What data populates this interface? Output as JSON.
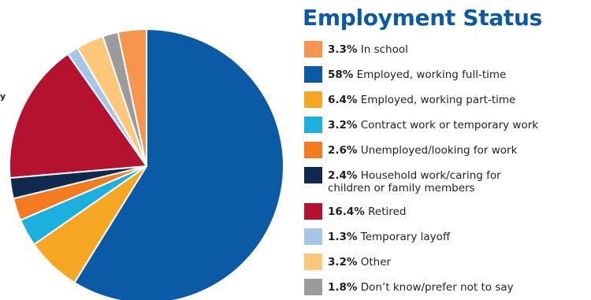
{
  "title": "Employment Status",
  "cut_label": "y",
  "chart_data": {
    "type": "pie",
    "title": "Employment Status",
    "start": "12 o'clock",
    "direction": "clockwise",
    "slices": [
      {
        "pct_label": "58%",
        "value": 58,
        "label": "Employed, working full-time",
        "label_line2": "",
        "color": "#0b5aa6"
      },
      {
        "pct_label": "6.4%",
        "value": 6.4,
        "label": "Employed, working part-time",
        "label_line2": "",
        "color": "#f5a623"
      },
      {
        "pct_label": "3.2%",
        "value": 3.2,
        "label": "Contract work or temporary work",
        "label_line2": "",
        "color": "#1cb0df"
      },
      {
        "pct_label": "2.6%",
        "value": 2.6,
        "label": "Unemployed/looking for work",
        "label_line2": "",
        "color": "#f47b20"
      },
      {
        "pct_label": "2.4%",
        "value": 2.4,
        "label": "Household work/caring for",
        "label_line2": "children or family members",
        "color": "#0f2a4e"
      },
      {
        "pct_label": "16.4%",
        "value": 16.4,
        "label": "Retired",
        "label_line2": "",
        "color": "#b5122f"
      },
      {
        "pct_label": "1.3%",
        "value": 1.3,
        "label": "Temporary layoff",
        "label_line2": "",
        "color": "#a6c6e8"
      },
      {
        "pct_label": "3.2%",
        "value": 3.2,
        "label": "Other",
        "label_line2": "",
        "color": "#fdc87a"
      },
      {
        "pct_label": "1.8%",
        "value": 1.8,
        "label": "Don’t know/prefer not to say",
        "label_line2": "",
        "color": "#9b9b9b"
      },
      {
        "pct_label": "3.3%",
        "value": 3.3,
        "label": "In school",
        "label_line2": "",
        "color": "#f7944d"
      }
    ],
    "legend_order": [
      {
        "pct_label": "3.3%",
        "label": "In school",
        "label_line2": "",
        "color": "#f7944d"
      },
      {
        "pct_label": "58%",
        "label": "Employed, working full-time",
        "label_line2": "",
        "color": "#0b5aa6"
      },
      {
        "pct_label": "6.4%",
        "label": "Employed, working part-time",
        "label_line2": "",
        "color": "#f5a623"
      },
      {
        "pct_label": "3.2%",
        "label": "Contract work or temporary work",
        "label_line2": "",
        "color": "#1cb0df"
      },
      {
        "pct_label": "2.6%",
        "label": "Unemployed/looking for work",
        "label_line2": "",
        "color": "#f47b20"
      },
      {
        "pct_label": "2.4%",
        "label": "Household work/caring for",
        "label_line2": "children or family members",
        "color": "#0f2a4e"
      },
      {
        "pct_label": "16.4%",
        "label": "Retired",
        "label_line2": "",
        "color": "#b5122f"
      },
      {
        "pct_label": "1.3%",
        "label": "Temporary layoff",
        "label_line2": "",
        "color": "#a6c6e8"
      },
      {
        "pct_label": "3.2%",
        "label": "Other",
        "label_line2": "",
        "color": "#fdc87a"
      },
      {
        "pct_label": "1.8%",
        "label": "Don’t know/prefer not to say",
        "label_line2": "",
        "color": "#9b9b9b"
      }
    ],
    "legend_placement": "right"
  }
}
